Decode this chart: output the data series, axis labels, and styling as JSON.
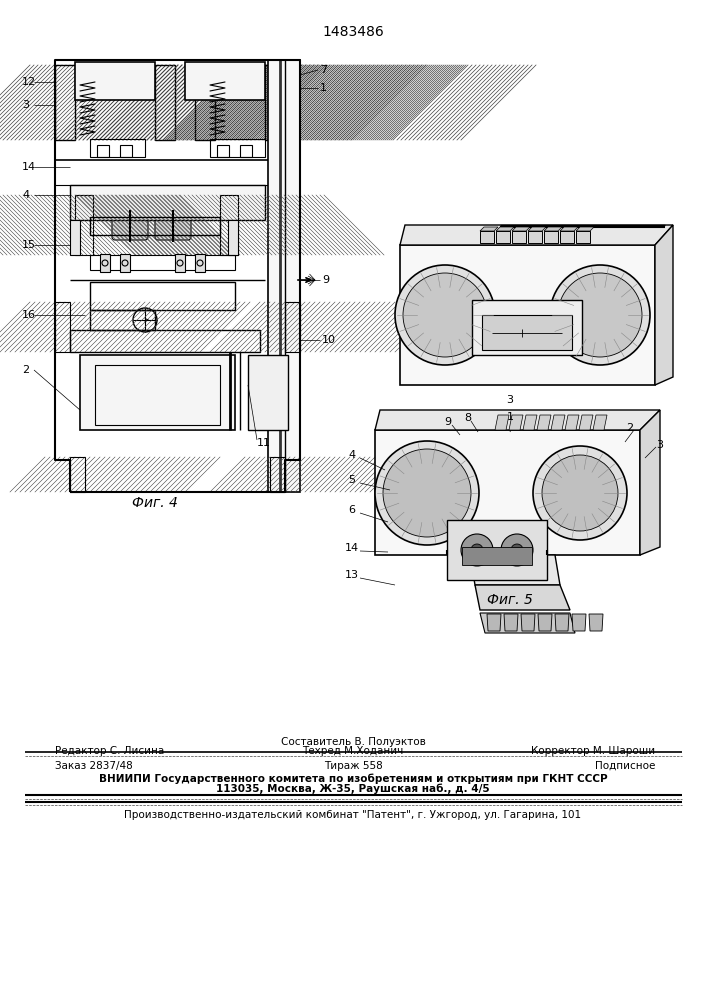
{
  "bg_color": "#ffffff",
  "text_color": "#000000",
  "patent_number": "1483486",
  "fig4_caption": "Фиг. 4",
  "fig5_caption": "Фиг. 5",
  "footer": {
    "line1_center": "Составитель В. Полуэктов",
    "line2_left": "Редактор С. Лисина",
    "line2_center": "Техред М.Ходанич",
    "line2_right": "Корректор М. Шароши",
    "line3_left": "Заказ 2837/48",
    "line3_center": "Тираж 558",
    "line3_right": "Подписное",
    "line4": "ВНИИПИ Государственного комитета по изобретениям и открытиям при ГКНТ СССР",
    "line5": "113035, Москва, Ж-35, Раушская наб., д. 4/5",
    "line6": "Производственно-издательский комбинат \"Патент\", г. Ужгород, ул. Гагарина, 101"
  }
}
